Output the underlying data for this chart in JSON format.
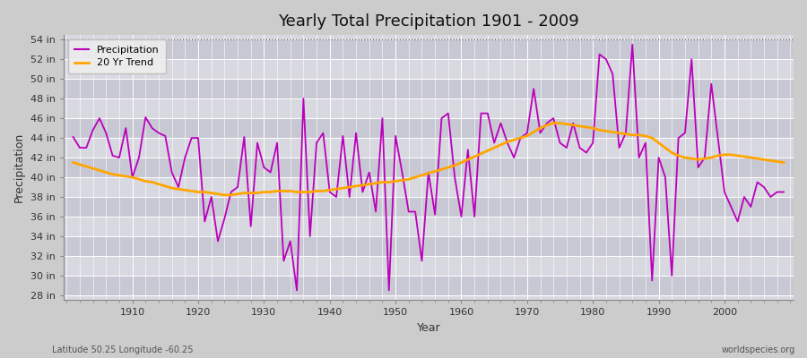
{
  "title": "Yearly Total Precipitation 1901 - 2009",
  "xlabel": "Year",
  "ylabel": "Precipitation",
  "bottom_left_label": "Latitude 50.25 Longitude -60.25",
  "bottom_right_label": "worldspecies.org",
  "legend_labels": [
    "Precipitation",
    "20 Yr Trend"
  ],
  "precip_color": "#bb00bb",
  "trend_color": "#ffa500",
  "fig_bg_color": "#cccccc",
  "plot_bg_light": "#d8d8e0",
  "plot_bg_dark": "#c8c8d4",
  "ylim": [
    27.5,
    54.5
  ],
  "yticks": [
    28,
    30,
    32,
    34,
    36,
    38,
    40,
    42,
    44,
    46,
    48,
    50,
    52,
    54
  ],
  "xticks": [
    1910,
    1920,
    1930,
    1940,
    1950,
    1960,
    1970,
    1980,
    1990,
    2000
  ],
  "hline_y": 54,
  "years": [
    1901,
    1902,
    1903,
    1904,
    1905,
    1906,
    1907,
    1908,
    1909,
    1910,
    1911,
    1912,
    1913,
    1914,
    1915,
    1916,
    1917,
    1918,
    1919,
    1920,
    1921,
    1922,
    1923,
    1924,
    1925,
    1926,
    1927,
    1928,
    1929,
    1930,
    1931,
    1932,
    1933,
    1934,
    1935,
    1936,
    1937,
    1938,
    1939,
    1940,
    1941,
    1942,
    1943,
    1944,
    1945,
    1946,
    1947,
    1948,
    1949,
    1950,
    1951,
    1952,
    1953,
    1954,
    1955,
    1956,
    1957,
    1958,
    1959,
    1960,
    1961,
    1962,
    1963,
    1964,
    1965,
    1966,
    1967,
    1968,
    1969,
    1970,
    1971,
    1972,
    1973,
    1974,
    1975,
    1976,
    1977,
    1978,
    1979,
    1980,
    1981,
    1982,
    1983,
    1984,
    1985,
    1986,
    1987,
    1988,
    1989,
    1990,
    1991,
    1992,
    1993,
    1994,
    1995,
    1996,
    1997,
    1998,
    1999,
    2000,
    2001,
    2002,
    2003,
    2004,
    2005,
    2006,
    2007,
    2008,
    2009
  ],
  "precip": [
    44.1,
    43.0,
    43.0,
    44.8,
    46.0,
    44.5,
    42.2,
    42.0,
    45.0,
    40.0,
    42.0,
    46.1,
    45.0,
    44.5,
    44.2,
    40.5,
    39.0,
    42.0,
    44.0,
    44.0,
    35.5,
    38.0,
    33.5,
    35.8,
    38.5,
    39.0,
    44.1,
    35.0,
    43.5,
    41.0,
    40.5,
    43.5,
    31.5,
    33.5,
    28.5,
    48.0,
    34.0,
    43.5,
    44.5,
    38.5,
    38.0,
    44.2,
    38.0,
    44.5,
    38.5,
    40.5,
    36.5,
    46.0,
    28.5,
    44.2,
    40.5,
    36.5,
    36.5,
    31.5,
    40.5,
    36.2,
    46.0,
    46.5,
    40.0,
    36.0,
    42.8,
    36.0,
    46.5,
    46.5,
    43.5,
    45.5,
    43.5,
    42.0,
    44.0,
    44.5,
    49.0,
    44.5,
    45.5,
    46.0,
    43.5,
    43.0,
    45.5,
    43.0,
    42.5,
    43.5,
    52.5,
    52.0,
    50.5,
    43.0,
    44.5,
    53.5,
    42.0,
    43.5,
    29.5,
    42.0,
    40.0,
    30.0,
    44.0,
    44.5,
    52.0,
    41.0,
    42.0,
    49.5,
    44.0,
    38.5,
    37.0,
    35.5,
    38.0,
    37.0,
    39.5,
    39.0,
    38.0,
    38.5,
    38.5
  ],
  "trend": [
    41.5,
    41.3,
    41.1,
    40.9,
    40.7,
    40.5,
    40.3,
    40.2,
    40.1,
    40.0,
    39.8,
    39.6,
    39.5,
    39.3,
    39.1,
    38.9,
    38.8,
    38.7,
    38.6,
    38.5,
    38.5,
    38.4,
    38.3,
    38.2,
    38.2,
    38.3,
    38.4,
    38.4,
    38.4,
    38.5,
    38.5,
    38.6,
    38.6,
    38.6,
    38.5,
    38.5,
    38.5,
    38.6,
    38.6,
    38.7,
    38.8,
    38.9,
    39.0,
    39.1,
    39.2,
    39.3,
    39.4,
    39.5,
    39.5,
    39.6,
    39.7,
    39.8,
    40.0,
    40.2,
    40.4,
    40.6,
    40.8,
    41.0,
    41.2,
    41.5,
    41.8,
    42.1,
    42.4,
    42.7,
    43.0,
    43.3,
    43.6,
    43.8,
    44.0,
    44.2,
    44.6,
    45.0,
    45.3,
    45.5,
    45.5,
    45.4,
    45.3,
    45.2,
    45.1,
    45.0,
    44.8,
    44.7,
    44.6,
    44.5,
    44.4,
    44.3,
    44.3,
    44.2,
    44.0,
    43.5,
    43.0,
    42.5,
    42.2,
    42.0,
    41.9,
    41.8,
    41.9,
    42.0,
    42.2,
    42.3,
    42.3,
    42.2,
    42.1,
    42.0,
    41.9,
    41.8,
    41.7,
    41.6,
    41.5
  ]
}
